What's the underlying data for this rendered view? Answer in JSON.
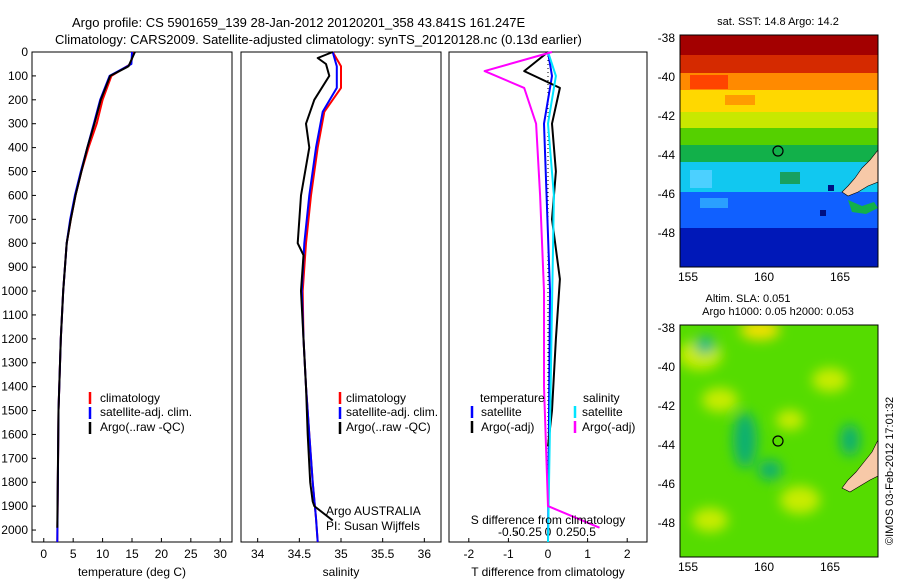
{
  "header": {
    "line1": "Argo profile: CS 5901659_139 28-Jan-2012 20120201_358 43.841S 161.247E",
    "line2": "Climatology: CARS2009. Satellite-adjusted climatology: synTS_20120128.nc (0.13d earlier)"
  },
  "colors": {
    "climatology": "#ff0000",
    "satellite": "#0000ff",
    "argo": "#000000",
    "cyan": "#00e5ff",
    "magenta": "#ff00ff"
  },
  "chart_data": [
    {
      "id": "temperature",
      "type": "line",
      "xlabel": "temperature (deg C)",
      "ylabel": "",
      "xlim": [
        -2,
        32
      ],
      "ylim": [
        2050,
        0
      ],
      "xticks": [
        0,
        5,
        10,
        15,
        20,
        25,
        30
      ],
      "yticks": [
        0,
        100,
        200,
        300,
        400,
        500,
        600,
        700,
        800,
        900,
        1000,
        1100,
        1200,
        1300,
        1400,
        1500,
        1600,
        1700,
        1800,
        1900,
        2000
      ],
      "legend": [
        "climatology",
        "satellite-adj. clim.",
        "Argo(..raw -QC)"
      ],
      "series": [
        {
          "name": "climatology",
          "color": "#ff0000",
          "x": [
            15.2,
            14.8,
            11.5,
            10.0,
            9.0,
            7.6,
            6.4,
            5.4,
            4.6,
            3.9,
            3.3,
            2.9,
            2.5,
            2.3
          ],
          "y": [
            0,
            50,
            100,
            200,
            300,
            400,
            500,
            600,
            700,
            800,
            1000,
            1200,
            1500,
            2050
          ]
        },
        {
          "name": "satellite-adj. clim.",
          "color": "#0000ff",
          "x": [
            15.0,
            14.9,
            11.2,
            9.6,
            8.5,
            7.4,
            6.3,
            5.3,
            4.5,
            3.9,
            3.3,
            2.9,
            2.5,
            2.3
          ],
          "y": [
            0,
            50,
            100,
            200,
            300,
            400,
            500,
            600,
            700,
            800,
            1000,
            1200,
            1500,
            2050
          ]
        },
        {
          "name": "Argo(..raw -QC)",
          "color": "#000000",
          "x": [
            15.5,
            14.4,
            11.3,
            9.7,
            8.6,
            7.4,
            6.4,
            5.4,
            4.6,
            3.9,
            3.3,
            2.9,
            2.5,
            2.3
          ],
          "y": [
            0,
            60,
            100,
            200,
            300,
            400,
            500,
            600,
            700,
            800,
            1000,
            1200,
            1500,
            1990
          ]
        }
      ]
    },
    {
      "id": "salinity",
      "type": "line",
      "xlabel": "salinity",
      "ylabel": "",
      "xlim": [
        33.8,
        36.2
      ],
      "ylim": [
        2050,
        0
      ],
      "xticks": [
        34,
        34.5,
        35,
        35.5,
        36
      ],
      "yticks": [],
      "legend": [
        "climatology",
        "satellite-adj. clim.",
        "Argo(..raw -QC)"
      ],
      "annotation": [
        "Argo AUSTRALIA",
        "PI: Susan Wijffels"
      ],
      "series": [
        {
          "name": "climatology",
          "color": "#ff0000",
          "x": [
            34.9,
            35.0,
            35.0,
            34.8,
            34.72,
            34.64,
            34.58,
            34.54,
            34.55,
            34.58,
            34.62,
            34.66,
            34.7,
            34.72
          ],
          "y": [
            0,
            60,
            150,
            250,
            400,
            600,
            800,
            1000,
            1200,
            1400,
            1600,
            1800,
            1950,
            2050
          ]
        },
        {
          "name": "satellite-adj. clim.",
          "color": "#0000ff",
          "x": [
            34.9,
            34.95,
            34.95,
            34.78,
            34.7,
            34.62,
            34.56,
            34.53,
            34.55,
            34.58,
            34.62,
            34.66,
            34.7,
            34.72
          ],
          "y": [
            0,
            60,
            150,
            250,
            400,
            600,
            800,
            1000,
            1200,
            1400,
            1600,
            1800,
            1950,
            2050
          ]
        },
        {
          "name": "Argo(..raw -QC)",
          "color": "#000000",
          "x": [
            34.9,
            34.72,
            34.82,
            34.86,
            34.68,
            34.58,
            34.62,
            34.52,
            34.48,
            34.55,
            34.52,
            34.55,
            34.58,
            34.6,
            34.63,
            34.66,
            34.68,
            34.9
          ],
          "y": [
            0,
            25,
            50,
            100,
            200,
            300,
            400,
            600,
            800,
            850,
            1000,
            1200,
            1400,
            1600,
            1800,
            1880,
            1900,
            1960
          ]
        }
      ]
    },
    {
      "id": "differences",
      "type": "line",
      "xlabel": "T difference from climatology",
      "title": "S difference from climatology",
      "ylabel": "",
      "xlim": [
        -2.5,
        2.5
      ],
      "ylim": [
        2050,
        0
      ],
      "xticks": [
        -2,
        -1,
        0,
        1,
        2
      ],
      "top_xticks": [
        "-0.5",
        "-0.25",
        "0",
        "0.25",
        "0.5"
      ],
      "yticks": [],
      "legend_headers": [
        "temperature",
        "salinity"
      ],
      "legend": [
        "satellite",
        "Argo(-adj)",
        "satellite",
        "Argo(-adj)"
      ],
      "series": [
        {
          "name": "satellite",
          "group": "temperature",
          "color": "#0000ff",
          "x": [
            0.0,
            0.1,
            -0.1,
            0.05,
            0.0
          ],
          "y": [
            0,
            100,
            300,
            1000,
            2050
          ]
        },
        {
          "name": "Argo(-adj)",
          "group": "temperature",
          "color": "#000000",
          "x": [
            0.0,
            -0.6,
            0.3,
            0.1,
            0.2,
            0.1,
            0.3,
            0.2,
            0.1,
            0.0
          ],
          "y": [
            0,
            80,
            150,
            300,
            500,
            700,
            950,
            1200,
            1500,
            1650
          ]
        },
        {
          "name": "satellite",
          "group": "salinity",
          "color": "#00e5ff",
          "x": [
            0.0,
            0.2,
            0.0,
            0.15,
            0.0
          ],
          "y": [
            0,
            100,
            300,
            600,
            2050
          ]
        },
        {
          "name": "Argo(-adj)",
          "group": "salinity",
          "color": "#ff00ff",
          "x": [
            0.1,
            -1.6,
            -0.6,
            -0.3,
            -0.2,
            -0.1,
            -0.1,
            0.0,
            1.3
          ],
          "y": [
            0,
            80,
            150,
            300,
            600,
            1000,
            1400,
            1900,
            1990
          ]
        }
      ]
    }
  ],
  "sst_map": {
    "title": "sat. SST: 14.8 Argo: 14.2",
    "xticks": [
      "155",
      "160",
      "165"
    ],
    "yticks": [
      "-38",
      "-40",
      "-42",
      "-44",
      "-46",
      "-48"
    ]
  },
  "sla_map": {
    "title_line1": "Altim. SLA: 0.051",
    "title_line2": "Argo h1000: 0.05 h2000: 0.053",
    "xticks": [
      "155",
      "160",
      "165"
    ],
    "yticks": [
      "-38",
      "-40",
      "-42",
      "-44",
      "-46",
      "-48"
    ]
  },
  "credit": "©IMOS 03-Feb-2012 17:01:32"
}
